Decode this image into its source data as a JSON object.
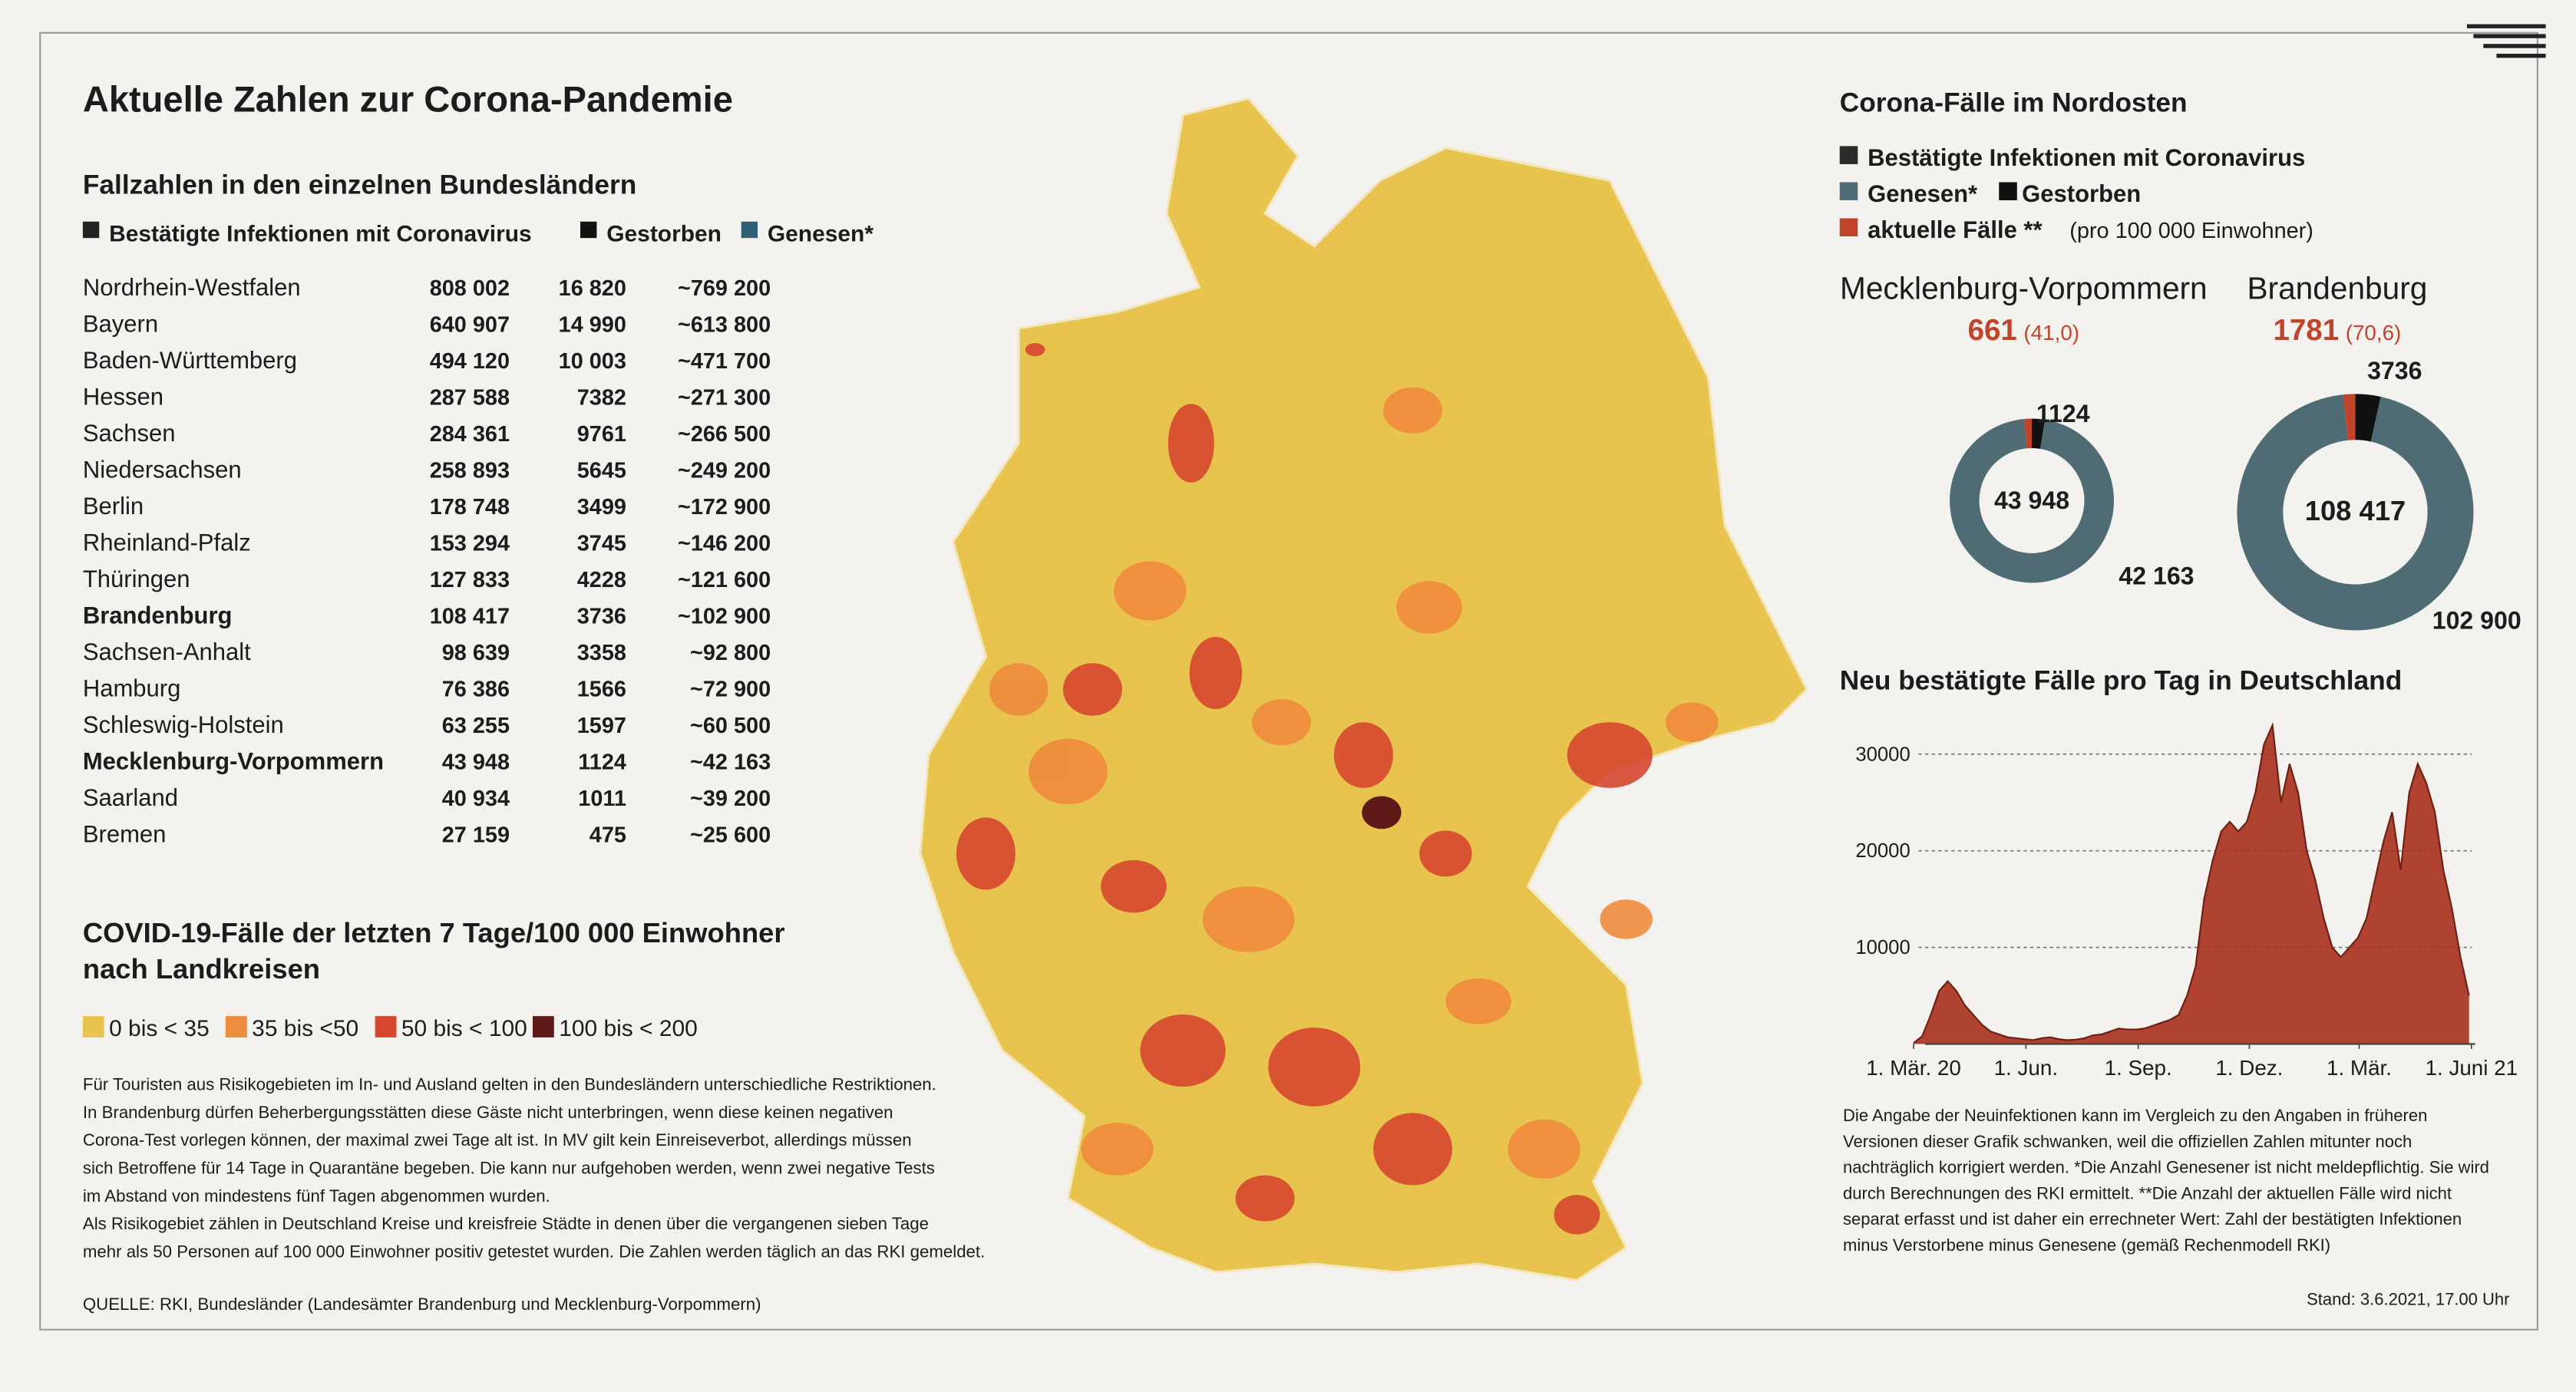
{
  "title": "Aktuelle Zahlen zur Corona-Pandemie",
  "table": {
    "title": "Fallzahlen in den einzelnen Bundesländern",
    "legend": [
      {
        "label": "Bestätigte Infektionen mit Coronavirus",
        "color": "#222222"
      },
      {
        "label": "Gestorben",
        "color": "#111111"
      },
      {
        "label": "Genesen*",
        "color": "#2f6078"
      }
    ],
    "rows": [
      {
        "name": "Nordrhein-Westfalen",
        "infected": "808 002",
        "deaths": "16 820",
        "recovered": "~769 200"
      },
      {
        "name": "Bayern",
        "infected": "640 907",
        "deaths": "14 990",
        "recovered": "~613 800"
      },
      {
        "name": "Baden-Württemberg",
        "infected": "494 120",
        "deaths": "10 003",
        "recovered": "~471 700"
      },
      {
        "name": "Hessen",
        "infected": "287 588",
        "deaths": "7382",
        "recovered": "~271 300"
      },
      {
        "name": "Sachsen",
        "infected": "284 361",
        "deaths": "9761",
        "recovered": "~266 500"
      },
      {
        "name": "Niedersachsen",
        "infected": "258 893",
        "deaths": "5645",
        "recovered": "~249 200"
      },
      {
        "name": "Berlin",
        "infected": "178 748",
        "deaths": "3499",
        "recovered": "~172 900"
      },
      {
        "name": "Rheinland-Pfalz",
        "infected": "153 294",
        "deaths": "3745",
        "recovered": "~146 200"
      },
      {
        "name": "Thüringen",
        "infected": "127 833",
        "deaths": "4228",
        "recovered": "~121 600"
      },
      {
        "name": "Brandenburg",
        "infected": "108 417",
        "deaths": "3736",
        "recovered": "~102 900",
        "bold": true
      },
      {
        "name": "Sachsen-Anhalt",
        "infected": "98 639",
        "deaths": "3358",
        "recovered": "~92 800"
      },
      {
        "name": "Hamburg",
        "infected": "76 386",
        "deaths": "1566",
        "recovered": "~72 900"
      },
      {
        "name": "Schleswig-Holstein",
        "infected": "63 255",
        "deaths": "1597",
        "recovered": "~60 500"
      },
      {
        "name": "Mecklenburg-Vorpommern",
        "infected": "43 948",
        "deaths": "1124",
        "recovered": "~42 163",
        "bold": true
      },
      {
        "name": "Saarland",
        "infected": "40 934",
        "deaths": "1011",
        "recovered": "~39 200"
      },
      {
        "name": "Bremen",
        "infected": "27 159",
        "deaths": "475",
        "recovered": "~25 600"
      }
    ]
  },
  "map": {
    "title": [
      "COVID-19-Fälle der letzten 7 Tage/100 000 Einwohner",
      "nach Landkreisen"
    ],
    "legend": [
      {
        "label": "0 bis < 35",
        "color": "#e8c34e"
      },
      {
        "label": "35 bis <50",
        "color": "#ee8b3c"
      },
      {
        "label": "50 bis < 100",
        "color": "#d6472f"
      },
      {
        "label": "100 bis < 200",
        "color": "#5e1a16"
      }
    ]
  },
  "notes": [
    "Für Touristen aus Risikogebieten im In- und Ausland gelten in den Bundesländern unterschiedliche Restriktionen.",
    "In Brandenburg dürfen Beherbergungsstätten diese Gäste nicht unterbringen, wenn diese keinen negativen",
    "Corona-Test vorlegen können, der maximal zwei Tage alt ist. In MV gilt kein Einreiseverbot, allerdings müssen",
    "sich Betroffene für 14 Tage in Quarantäne begeben. Die kann nur aufgehoben werden, wenn zwei negative Tests",
    "im Abstand von mindestens fünf Tagen abgenommen wurden.",
    "Als Risikogebiet zählen in Deutschland Kreise und kreisfreie Städte in denen über die vergangenen sieben Tage",
    "mehr als 50 Personen auf 100 000 Einwohner positiv getestet wurden. Die Zahlen werden täglich an das RKI gemeldet."
  ],
  "source": "QUELLE: RKI, Bundesländer (Landesämter Brandenburg und Mecklenburg-Vorpommern)",
  "nordosten": {
    "title": "Corona-Fälle im Nordosten",
    "legend": [
      {
        "label": "Bestätigte Infektionen mit Coronavirus",
        "color": "#2a2a2a"
      },
      {
        "label": "Genesen*",
        "color": "#4f6b73"
      },
      {
        "label": "Gestorben",
        "color": "#111111"
      },
      {
        "label": "aktuelle Fälle **",
        "note": "(pro 100 000 Einwohner)",
        "color": "#c1432a"
      }
    ]
  },
  "chart_data": [
    {
      "type": "donut",
      "title": "Mecklenburg-Vorpommern",
      "incidence_label": "(41,0)",
      "center": {
        "value": 43948,
        "label": "43 948"
      },
      "values": [
        42163,
        1124,
        661
      ],
      "value_labels": [
        "42 163",
        "1124",
        "661"
      ],
      "colors": [
        "#4f6b73",
        "#111111",
        "#c1432a"
      ]
    },
    {
      "type": "donut",
      "title": "Brandenburg",
      "incidence_label": "(70,6)",
      "center": {
        "value": 108417,
        "label": "108 417"
      },
      "values": [
        102900,
        3736,
        1781
      ],
      "value_labels": [
        "102 900",
        "3736",
        "1781"
      ],
      "colors": [
        "#4f6b73",
        "#111111",
        "#c1432a"
      ]
    },
    {
      "type": "area",
      "title": "Neu bestätigte Fälle pro Tag in Deutschland",
      "color": "#a8331f",
      "grid": true,
      "x": [
        "2020-03-01",
        "2020-03-08",
        "2020-03-15",
        "2020-03-22",
        "2020-03-29",
        "2020-04-05",
        "2020-04-12",
        "2020-04-19",
        "2020-04-26",
        "2020-05-03",
        "2020-05-10",
        "2020-05-17",
        "2020-05-24",
        "2020-05-31",
        "2020-06-07",
        "2020-06-14",
        "2020-06-21",
        "2020-06-28",
        "2020-07-05",
        "2020-07-12",
        "2020-07-19",
        "2020-07-26",
        "2020-08-02",
        "2020-08-09",
        "2020-08-16",
        "2020-08-23",
        "2020-08-30",
        "2020-09-06",
        "2020-09-13",
        "2020-09-20",
        "2020-09-27",
        "2020-10-04",
        "2020-10-11",
        "2020-10-18",
        "2020-10-25",
        "2020-11-01",
        "2020-11-08",
        "2020-11-15",
        "2020-11-22",
        "2020-11-29",
        "2020-12-06",
        "2020-12-13",
        "2020-12-20",
        "2020-12-27",
        "2021-01-03",
        "2021-01-10",
        "2021-01-17",
        "2021-01-24",
        "2021-01-31",
        "2021-02-07",
        "2021-02-14",
        "2021-02-21",
        "2021-02-28",
        "2021-03-07",
        "2021-03-14",
        "2021-03-21",
        "2021-03-28",
        "2021-04-04",
        "2021-04-11",
        "2021-04-18",
        "2021-04-25",
        "2021-05-02",
        "2021-05-09",
        "2021-05-16",
        "2021-05-23",
        "2021-05-30"
      ],
      "values": [
        100,
        800,
        3000,
        5500,
        6500,
        5500,
        4000,
        3000,
        2000,
        1300,
        1000,
        700,
        600,
        500,
        400,
        600,
        700,
        500,
        400,
        450,
        600,
        900,
        1000,
        1300,
        1600,
        1500,
        1500,
        1600,
        1900,
        2200,
        2500,
        3000,
        5000,
        8000,
        15000,
        19000,
        22000,
        23000,
        22000,
        23000,
        26000,
        31000,
        33000,
        25000,
        29000,
        26000,
        20000,
        17000,
        13000,
        10000,
        9000,
        10000,
        11000,
        13000,
        17000,
        21000,
        24000,
        18000,
        26000,
        29000,
        27000,
        24000,
        18000,
        14000,
        9000,
        5000
      ],
      "xlim": [
        "2020-03-01",
        "2021-06-04"
      ],
      "xticks": [
        {
          "value": "2020-03-01",
          "label": "1. Mär. 20"
        },
        {
          "value": "2020-06-01",
          "label": "1. Jun."
        },
        {
          "value": "2020-09-01",
          "label": "1. Sep."
        },
        {
          "value": "2020-12-01",
          "label": "1. Dez."
        },
        {
          "value": "2021-03-01",
          "label": "1. Mär."
        },
        {
          "value": "2021-06-01",
          "label": "1. Juni 21"
        }
      ],
      "ylim": [
        0,
        35000
      ],
      "yticks": [
        10000,
        20000,
        30000
      ]
    }
  ],
  "right_notes": [
    "Die Angabe der Neuinfektionen kann im Vergleich zu den Angaben in früheren",
    "Versionen dieser Grafik schwanken, weil die offiziellen Zahlen mitunter noch",
    "nachträglich korrigiert werden. *Die Anzahl Genesener ist nicht meldepflichtig. Sie wird",
    "durch Berechnungen des RKI ermittelt. **Die Anzahl der aktuellen Fälle wird nicht",
    "separat erfasst und ist daher ein errechneter Wert: Zahl der bestätigten Infektionen",
    "minus Verstorbene minus Genesene (gemäß Rechenmodell RKI)"
  ],
  "stand": "Stand: 3.6.2021, 17.00 Uhr"
}
